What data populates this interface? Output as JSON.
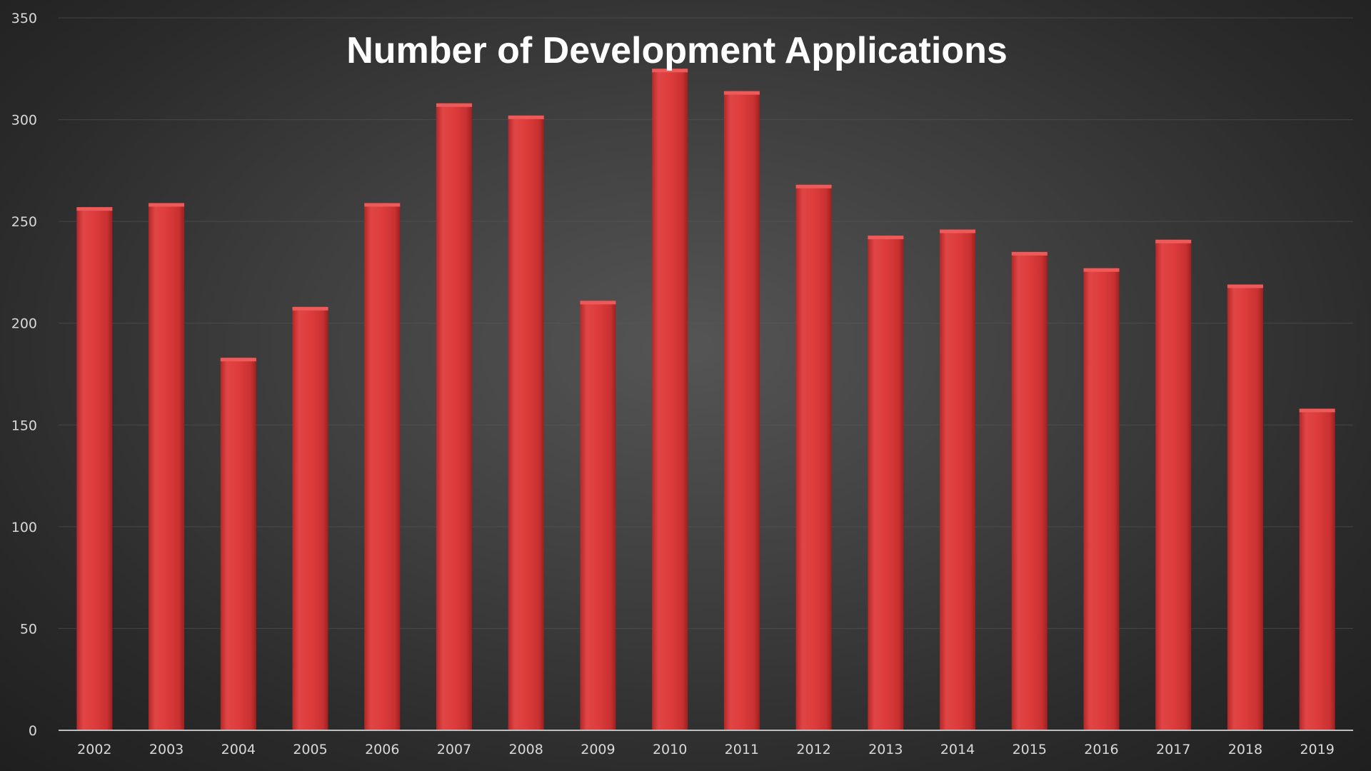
{
  "chart_data": {
    "type": "bar",
    "title": "Number of Development Applications",
    "xlabel": "",
    "ylabel": "",
    "categories": [
      "2002",
      "2003",
      "2004",
      "2005",
      "2006",
      "2007",
      "2008",
      "2009",
      "2010",
      "2011",
      "2012",
      "2013",
      "2014",
      "2015",
      "2016",
      "2017",
      "2018",
      "2019"
    ],
    "values": [
      257,
      259,
      183,
      208,
      259,
      308,
      302,
      211,
      325,
      314,
      268,
      243,
      246,
      235,
      227,
      241,
      219,
      158
    ],
    "ylim": [
      0,
      350
    ],
    "yticks": [
      0,
      50,
      100,
      150,
      200,
      250,
      300,
      350
    ],
    "grid": true,
    "legend": "none",
    "colors": {
      "bar": "#d93a3a",
      "bar_highlight": "#ec5a5a",
      "bar_shadow": "#a82424",
      "grid": "#5a5a5a",
      "axis": "#bfbfbf",
      "text": "#d9d9d9",
      "title": "#ffffff"
    }
  }
}
